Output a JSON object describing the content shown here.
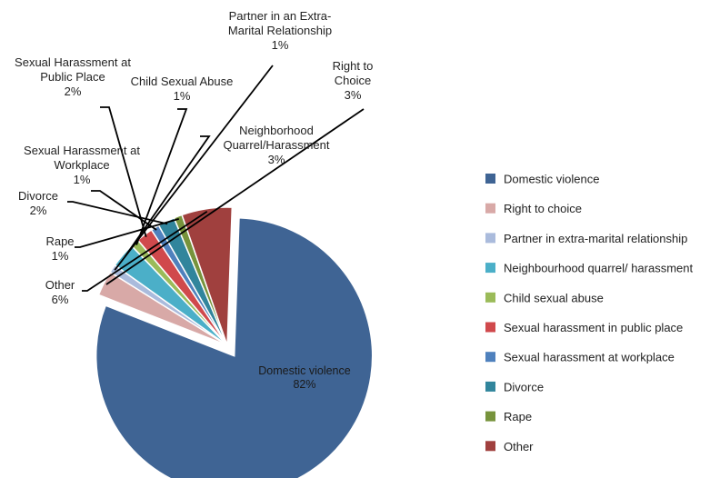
{
  "chart_data": {
    "type": "pie",
    "title": "",
    "slices": [
      {
        "label": "Domestic violence",
        "display_label": [
          "Domestic violence"
        ],
        "value": 82,
        "percent_label": "82%",
        "color": "#3F6494"
      },
      {
        "label": "Right to choice",
        "display_label": [
          "Right to",
          "Choice"
        ],
        "value": 3,
        "percent_label": "3%",
        "color": "#D8A9A7"
      },
      {
        "label": "Partner in extra-marital relationship",
        "display_label": [
          "Partner in an Extra-",
          "Marital Relationship"
        ],
        "value": 1,
        "percent_label": "1%",
        "color": "#AABBDC"
      },
      {
        "label": "Neighbourhood quarrel/ harassment",
        "display_label": [
          "Neighborhood",
          "Quarrel/Harassment"
        ],
        "value": 3,
        "percent_label": "3%",
        "color": "#4BAFC8"
      },
      {
        "label": "Child sexual abuse",
        "display_label": [
          "Child Sexual Abuse"
        ],
        "value": 1,
        "percent_label": "1%",
        "color": "#9BBB59"
      },
      {
        "label": "Sexual harassment in public place",
        "display_label": [
          "Sexual Harassment  at",
          "Public Place"
        ],
        "value": 2,
        "percent_label": "2%",
        "color": "#D0494C"
      },
      {
        "label": "Sexual harassment at workplace",
        "display_label": [
          "Sexual Harassment  at",
          "Workplace"
        ],
        "value": 1,
        "percent_label": "1%",
        "color": "#4F81BD"
      },
      {
        "label": "Divorce",
        "display_label": [
          "Divorce"
        ],
        "value": 2,
        "percent_label": "2%",
        "color": "#31859C"
      },
      {
        "label": "Rape",
        "display_label": [
          "Rape"
        ],
        "value": 1,
        "percent_label": "1%",
        "color": "#77933C"
      },
      {
        "label": "Other",
        "display_label": [
          "Other"
        ],
        "value": 6,
        "percent_label": "6%",
        "color": "#A0403E"
      }
    ],
    "legend_position": "right",
    "exploded_slice": "Domestic violence"
  }
}
